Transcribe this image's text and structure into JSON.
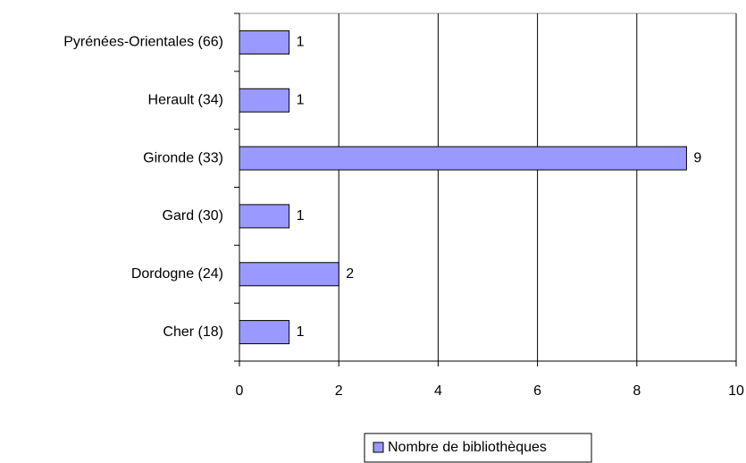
{
  "chart_data": {
    "type": "hbar",
    "categories": [
      "Pyrénées-Orientales (66)",
      "Herault (34)",
      "Gironde (33)",
      "Gard (30)",
      "Dordogne (24)",
      "Cher (18)"
    ],
    "series": [
      {
        "name": "Nombre de bibliothèques",
        "color": "#9999ff",
        "values": [
          1,
          1,
          9,
          1,
          2,
          1
        ]
      }
    ],
    "xlim": [
      0,
      10
    ],
    "xticks": [
      0,
      2,
      4,
      6,
      8,
      10
    ],
    "grid": true,
    "legend": "bottom"
  }
}
